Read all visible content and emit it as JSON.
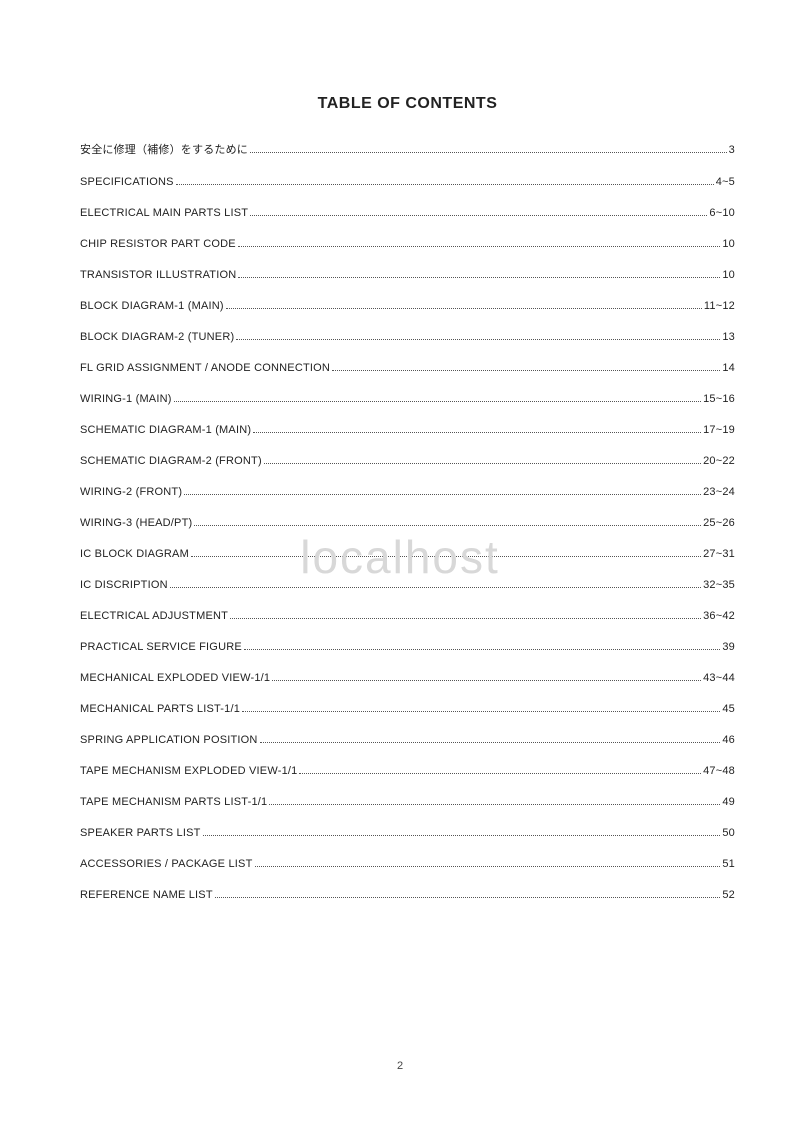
{
  "title": "TABLE OF CONTENTS",
  "watermark": "localhost",
  "page_number": "2",
  "text_color": "#222222",
  "background_color": "#ffffff",
  "watermark_color": "#d8d8d8",
  "dot_color": "#555555",
  "title_fontsize": 16,
  "entry_fontsize": 11,
  "entries": [
    {
      "label": "安全に修理（補修）をするために",
      "page": "3"
    },
    {
      "label": "SPECIFICATIONS",
      "page": "4~5"
    },
    {
      "label": "ELECTRICAL MAIN PARTS LIST",
      "page": "6~10"
    },
    {
      "label": "CHIP RESISTOR PART CODE",
      "page": "10"
    },
    {
      "label": "TRANSISTOR ILLUSTRATION",
      "page": "10"
    },
    {
      "label": "BLOCK DIAGRAM-1 (MAIN)",
      "page": "11~12"
    },
    {
      "label": "BLOCK DIAGRAM-2 (TUNER)",
      "page": "13"
    },
    {
      "label": "FL GRID ASSIGNMENT / ANODE CONNECTION",
      "page": "14"
    },
    {
      "label": "WIRING-1 (MAIN)",
      "page": "15~16"
    },
    {
      "label": "SCHEMATIC DIAGRAM-1 (MAIN)",
      "page": "17~19"
    },
    {
      "label": "SCHEMATIC DIAGRAM-2 (FRONT)",
      "page": "20~22"
    },
    {
      "label": "WIRING-2 (FRONT)",
      "page": "23~24"
    },
    {
      "label": "WIRING-3 (HEAD/PT)",
      "page": "25~26"
    },
    {
      "label": "IC BLOCK DIAGRAM",
      "page": "27~31"
    },
    {
      "label": "IC DISCRIPTION",
      "page": "32~35"
    },
    {
      "label": "ELECTRICAL ADJUSTMENT",
      "page": "36~42"
    },
    {
      "label": "PRACTICAL SERVICE FIGURE",
      "page": "39"
    },
    {
      "label": "MECHANICAL EXPLODED VIEW-1/1",
      "page": "43~44"
    },
    {
      "label": "MECHANICAL PARTS LIST-1/1",
      "page": "45"
    },
    {
      "label": "SPRING APPLICATION POSITION",
      "page": "46"
    },
    {
      "label": "TAPE MECHANISM EXPLODED VIEW-1/1",
      "page": "47~48"
    },
    {
      "label": "TAPE MECHANISM PARTS LIST-1/1",
      "page": "49"
    },
    {
      "label": "SPEAKER PARTS LIST",
      "page": "50"
    },
    {
      "label": "ACCESSORIES / PACKAGE LIST",
      "page": "51"
    },
    {
      "label": "REFERENCE NAME LIST",
      "page": "52"
    }
  ]
}
